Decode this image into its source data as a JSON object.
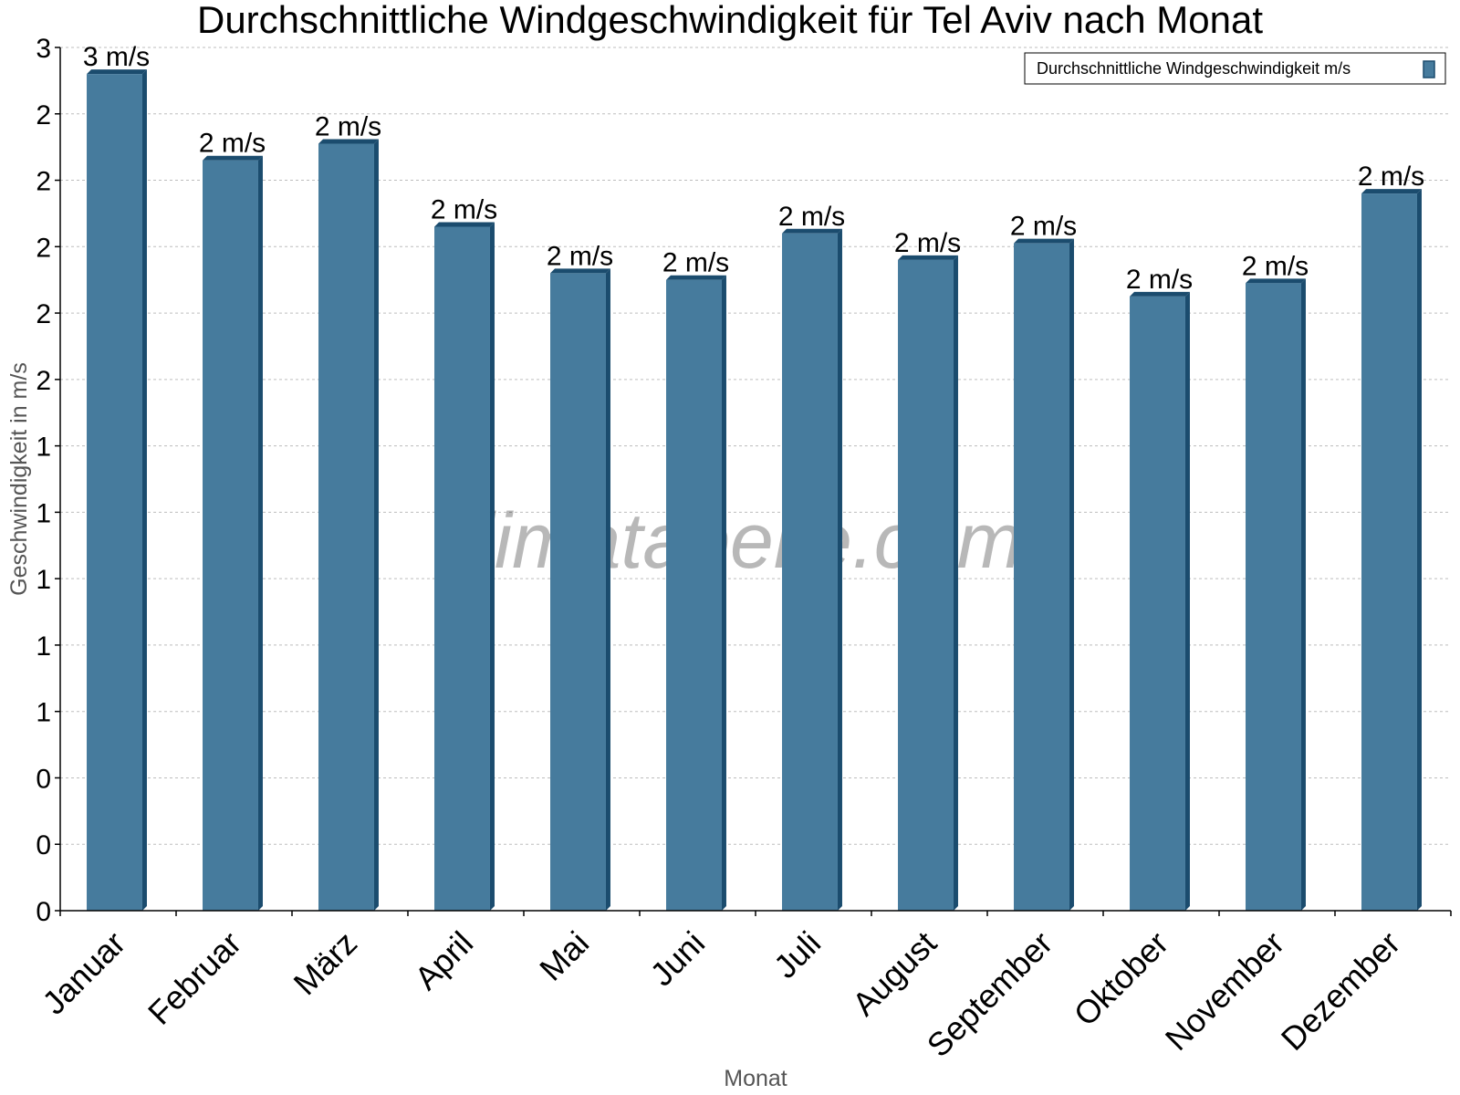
{
  "chart_data": {
    "type": "bar",
    "title": "Durchschnittliche Windgeschwindigkeit für Tel Aviv nach Monat",
    "xlabel": "Monat",
    "ylabel": "Geschwindigkeit in m/s",
    "categories": [
      "Januar",
      "Februar",
      "März",
      "April",
      "Mai",
      "Juni",
      "Juli",
      "August",
      "September",
      "Oktober",
      "November",
      "Dezember"
    ],
    "series": [
      {
        "name": "Durchschnittliche Windgeschwindigkeit m/s",
        "values": [
          2.52,
          2.26,
          2.31,
          2.06,
          1.92,
          1.9,
          2.04,
          1.96,
          2.01,
          1.85,
          1.89,
          2.16
        ],
        "labels": [
          "3 m/s",
          "2 m/s",
          "2 m/s",
          "2 m/s",
          "2 m/s",
          "2 m/s",
          "2 m/s",
          "2 m/s",
          "2 m/s",
          "2 m/s",
          "2 m/s",
          "2 m/s"
        ],
        "color": "#467B9D",
        "side_color": "#1B4C6E"
      }
    ],
    "ylim": [
      0,
      2.6
    ],
    "y_ticks": [
      0,
      0.2,
      0.4,
      0.6,
      0.8,
      1.0,
      1.2,
      1.4,
      1.6,
      1.8,
      2.0,
      2.2,
      2.4,
      2.6
    ],
    "y_tick_labels": [
      "0",
      "0",
      "0",
      "1",
      "1",
      "1",
      "1",
      "1",
      "2",
      "2",
      "2",
      "2",
      "2",
      "3"
    ],
    "grid": true,
    "legend_position": "top-right",
    "watermark": "klimatabelle.com"
  }
}
